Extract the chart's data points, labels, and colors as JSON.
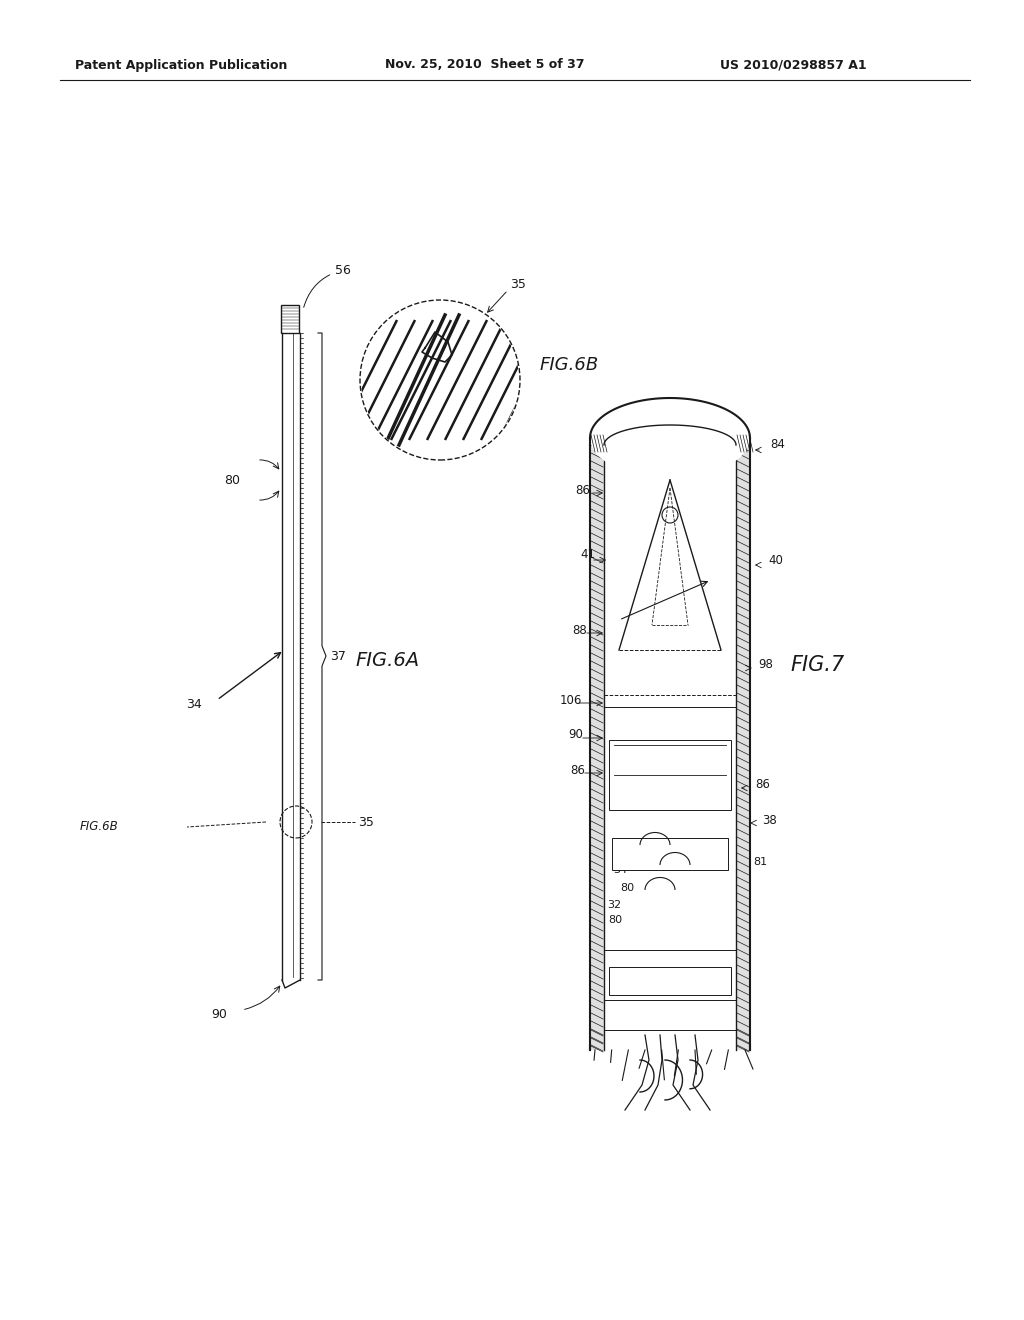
{
  "bg_color": "#ffffff",
  "line_color": "#1a1a1a",
  "header_left": "Patent Application Publication",
  "header_mid": "Nov. 25, 2010  Sheet 5 of 37",
  "header_right": "US 2010/0298857 A1",
  "fig6a_label": "FIG.6A",
  "fig6b_label": "FIG.6B",
  "fig7_label": "FIG.7"
}
